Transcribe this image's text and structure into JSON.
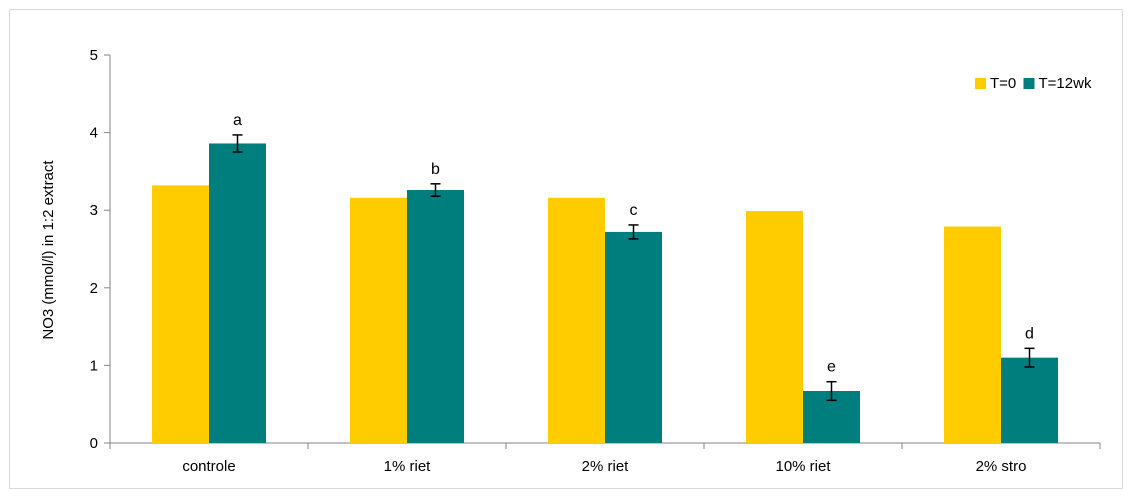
{
  "chart_data": {
    "type": "bar",
    "title": "",
    "xlabel": "",
    "ylabel": "NO3 (mmol/l) in 1:2 extract",
    "ylim": [
      0,
      5
    ],
    "yticks": [
      0,
      1,
      2,
      3,
      4,
      5
    ],
    "categories": [
      "controle",
      "1% riet",
      "2% riet",
      "10% riet",
      "2% stro"
    ],
    "series": [
      {
        "name": "T=0",
        "color": "#FFCC00",
        "values": [
          3.32,
          3.16,
          3.16,
          2.99,
          2.79
        ]
      },
      {
        "name": "T=12wk",
        "color": "#007D7D",
        "values": [
          3.86,
          3.26,
          2.72,
          0.67,
          1.1
        ],
        "errors": [
          0.11,
          0.08,
          0.09,
          0.12,
          0.12
        ],
        "labels": [
          "a",
          "b",
          "c",
          "e",
          "d"
        ]
      }
    ],
    "legend": "top-right",
    "grid": false
  }
}
